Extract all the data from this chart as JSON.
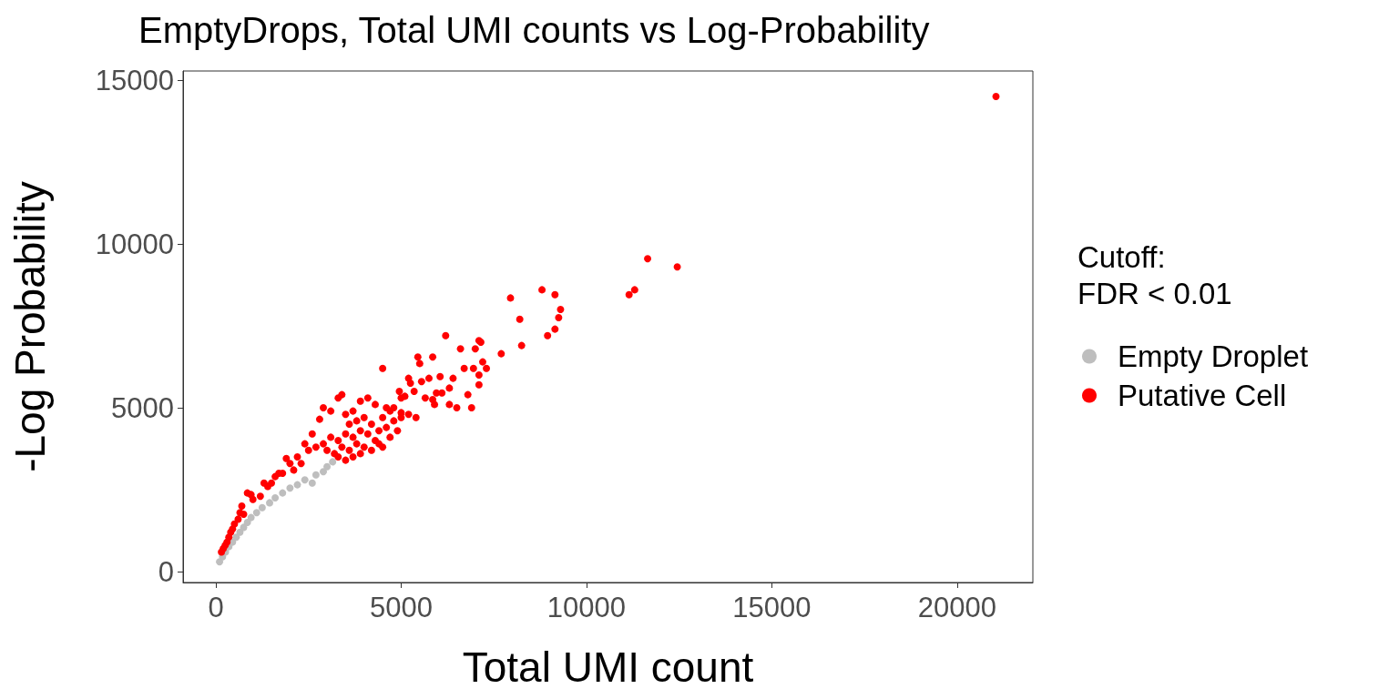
{
  "chart_data": {
    "type": "scatter",
    "title": "EmptyDrops, Total UMI counts vs Log-Probability",
    "xlabel": "Total UMI count",
    "ylabel": "-Log Probability",
    "legend_title": "Cutoff:\nFDR < 0.01",
    "legend": "right",
    "grid": false,
    "marker": "circle",
    "xlim": [
      -885,
      22045
    ],
    "ylim": [
      -333,
      15278
    ],
    "xticks": [
      0,
      5000,
      10000,
      15000,
      20000
    ],
    "yticks": [
      0,
      5000,
      10000,
      15000
    ],
    "series": [
      {
        "name": "Empty Droplet",
        "color": "#bebebe",
        "x": [
          100,
          180,
          260,
          350,
          450,
          550,
          650,
          750,
          850,
          950,
          1100,
          1250,
          1450,
          1600,
          1800,
          2000,
          2200,
          2400,
          2600,
          2700,
          2900,
          3000,
          3150
        ],
        "values": [
          300,
          450,
          600,
          760,
          900,
          1050,
          1200,
          1350,
          1500,
          1650,
          1800,
          1950,
          2100,
          2250,
          2400,
          2550,
          2650,
          2800,
          2700,
          2950,
          3050,
          3200,
          3350
        ]
      },
      {
        "name": "Putative Cell",
        "color": "#ff0000",
        "x": [
          21050,
          11650,
          12450,
          11300,
          11150,
          8800,
          9150,
          7950,
          9300,
          9250,
          9150,
          8950,
          8200,
          8250,
          6200,
          7000,
          7100,
          7150,
          7700,
          6600,
          7200,
          7300,
          7100,
          6950,
          7100,
          6700,
          6400,
          6300,
          6050,
          5850,
          5750,
          5550,
          5450,
          5500,
          5250,
          5200,
          5950,
          6100,
          5900,
          4500,
          4950,
          5350,
          5100,
          4800,
          5000,
          5850,
          5650,
          6300,
          6500,
          6800,
          6900,
          5400,
          5200,
          5000,
          4700,
          4600,
          4500,
          4300,
          4100,
          3900,
          3700,
          3500,
          3300,
          3400,
          3100,
          2900,
          2800,
          3600,
          3800,
          4000,
          4200,
          4400,
          4600,
          4800,
          5000,
          4300,
          4100,
          3900,
          3700,
          3500,
          3300,
          3100,
          2900,
          2700,
          2500,
          2600,
          2400,
          3000,
          3200,
          3400,
          3600,
          3800,
          4000,
          4200,
          3500,
          3700,
          3300,
          3900,
          4400,
          4700,
          4900,
          4500,
          2200,
          2000,
          1800,
          1900,
          2300,
          2100,
          1700,
          1500,
          1600,
          1400,
          1300,
          1200,
          1000,
          850,
          950,
          700,
          650,
          750,
          600,
          500,
          450,
          400,
          350,
          300,
          250,
          200,
          150
        ],
        "values": [
          14500,
          9550,
          9300,
          8600,
          8450,
          8600,
          8450,
          8350,
          8000,
          7750,
          7400,
          7200,
          7700,
          6900,
          7200,
          6800,
          7050,
          7000,
          6650,
          6800,
          6400,
          6200,
          6000,
          6200,
          5700,
          6200,
          5900,
          5600,
          5950,
          6550,
          5900,
          5800,
          6550,
          6350,
          5750,
          5900,
          5450,
          5450,
          5100,
          6200,
          5500,
          5500,
          5350,
          5000,
          5300,
          5250,
          5300,
          5100,
          5000,
          5400,
          5000,
          4700,
          4800,
          4850,
          4900,
          5000,
          4700,
          5100,
          5300,
          5200,
          4900,
          4800,
          5300,
          5400,
          4900,
          5000,
          4650,
          4500,
          4600,
          4700,
          4500,
          4300,
          4400,
          4600,
          4700,
          4000,
          4200,
          4300,
          4100,
          4200,
          4000,
          4100,
          3900,
          3800,
          3700,
          4200,
          3900,
          3700,
          3600,
          3800,
          3700,
          3900,
          3800,
          3700,
          3400,
          3500,
          3500,
          3600,
          3900,
          4100,
          4300,
          3800,
          3500,
          3300,
          3000,
          3450,
          3300,
          3100,
          3000,
          2700,
          2900,
          2600,
          2700,
          2300,
          2200,
          2400,
          2350,
          2000,
          1800,
          1750,
          1600,
          1450,
          1300,
          1200,
          1050,
          900,
          800,
          700,
          600
        ]
      }
    ]
  }
}
